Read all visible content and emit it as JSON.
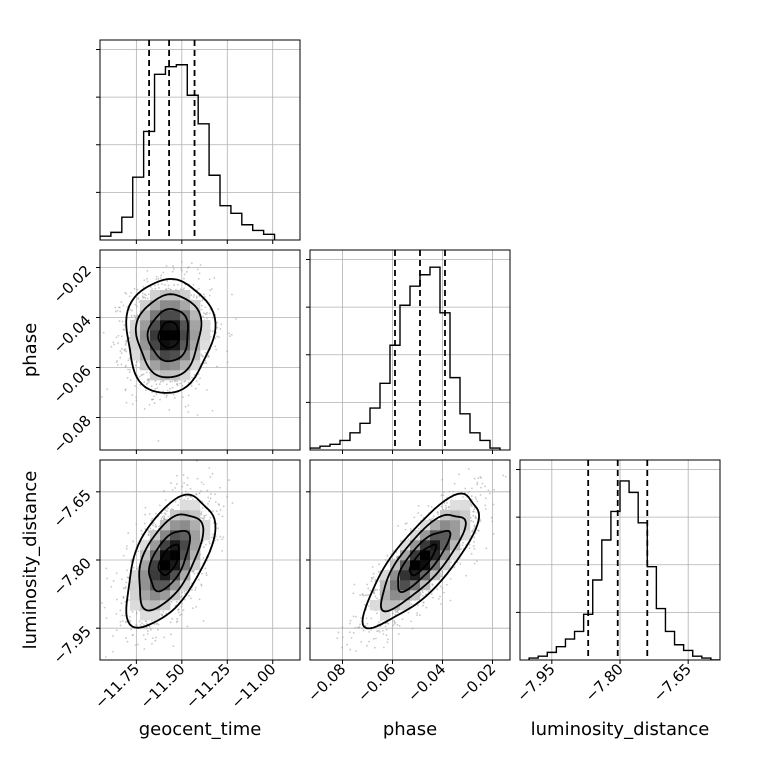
{
  "chart_data": {
    "type": "corner",
    "parameters": [
      "geocent_time",
      "phase",
      "luminosity_distance"
    ],
    "grid": true,
    "diagonal": [
      {
        "parameter": "geocent_time",
        "xlim": [
          -11.95,
          -10.85
        ],
        "ylim": [
          0,
          1.05
        ],
        "ticks": [
          -11.75,
          -11.5,
          -11.25,
          -11.0
        ],
        "tick_labels": [
          "−11.75",
          "−11.50",
          "−11.25",
          "−11.00"
        ],
        "hist_edges": [
          -11.95,
          -11.89,
          -11.83,
          -11.77,
          -11.71,
          -11.65,
          -11.59,
          -11.53,
          -11.47,
          -11.41,
          -11.35,
          -11.29,
          -11.23,
          -11.17,
          -11.11,
          -11.05,
          -10.99
        ],
        "hist_counts": [
          0.02,
          0.04,
          0.12,
          0.33,
          0.57,
          0.87,
          0.91,
          0.92,
          0.76,
          0.61,
          0.34,
          0.18,
          0.14,
          0.08,
          0.05,
          0.03
        ],
        "quantiles": [
          -11.68,
          -11.57,
          -11.43
        ]
      },
      {
        "parameter": "phase",
        "xlim": [
          -0.093,
          -0.013
        ],
        "ylim": [
          0,
          1.05
        ],
        "ticks": [
          -0.08,
          -0.06,
          -0.04,
          -0.02
        ],
        "tick_labels": [
          "−0.08",
          "−0.06",
          "−0.04",
          "−0.02"
        ],
        "hist_edges": [
          -0.093,
          -0.089,
          -0.085,
          -0.081,
          -0.077,
          -0.073,
          -0.069,
          -0.065,
          -0.061,
          -0.057,
          -0.053,
          -0.049,
          -0.045,
          -0.041,
          -0.037,
          -0.033,
          -0.029,
          -0.025,
          -0.021,
          -0.017
        ],
        "hist_counts": [
          0.01,
          0.02,
          0.03,
          0.05,
          0.09,
          0.14,
          0.22,
          0.35,
          0.55,
          0.76,
          0.86,
          0.92,
          0.96,
          0.72,
          0.38,
          0.19,
          0.09,
          0.05,
          0.01
        ],
        "quantiles": [
          -0.059,
          -0.049,
          -0.039
        ]
      },
      {
        "parameter": "luminosity_distance",
        "xlim": [
          -8.02,
          -7.58
        ],
        "ylim": [
          0,
          1.05
        ],
        "ticks": [
          -7.95,
          -7.8,
          -7.65
        ],
        "tick_labels": [
          "−7.95",
          "−7.80",
          "−7.65"
        ],
        "hist_edges": [
          -8.0,
          -7.98,
          -7.96,
          -7.94,
          -7.92,
          -7.9,
          -7.88,
          -7.86,
          -7.84,
          -7.82,
          -7.8,
          -7.78,
          -7.76,
          -7.74,
          -7.72,
          -7.7,
          -7.68,
          -7.66,
          -7.64,
          -7.62,
          -7.6,
          -7.58
        ],
        "hist_counts": [
          0.01,
          0.02,
          0.04,
          0.07,
          0.11,
          0.15,
          0.24,
          0.42,
          0.63,
          0.78,
          0.94,
          0.88,
          0.72,
          0.49,
          0.27,
          0.15,
          0.08,
          0.05,
          0.02,
          0.01,
          0.0
        ],
        "quantiles": [
          -7.87,
          -7.805,
          -7.74
        ]
      }
    ],
    "pairs": [
      {
        "x": "geocent_time",
        "y": "phase",
        "xlim": [
          -11.95,
          -10.85
        ],
        "ylim": [
          -0.093,
          -0.013
        ],
        "yticks": [
          -0.08,
          -0.06,
          -0.04,
          -0.02
        ],
        "ytick_labels": [
          "−0.08",
          "−0.06",
          "−0.04",
          "−0.02"
        ],
        "center": [
          -11.57,
          -0.047
        ],
        "sigma": [
          0.1,
          0.0095
        ],
        "correlation": 0.05,
        "contour_scales": [
          0.55,
          1.1,
          1.75,
          2.4
        ]
      },
      {
        "x": "geocent_time",
        "y": "luminosity_distance",
        "xlim": [
          -11.95,
          -10.85
        ],
        "ylim": [
          -8.02,
          -7.58
        ],
        "yticks": [
          -7.95,
          -7.8,
          -7.65
        ],
        "ytick_labels": [
          "−7.95",
          "−7.80",
          "−7.65"
        ],
        "center": [
          -11.57,
          -7.8
        ],
        "sigma": [
          0.1,
          0.06
        ],
        "correlation": 0.55,
        "contour_scales": [
          0.55,
          1.1,
          1.75,
          2.4
        ]
      },
      {
        "x": "phase",
        "y": "luminosity_distance",
        "xlim": [
          -0.093,
          -0.013
        ],
        "ylim": [
          -8.02,
          -7.58
        ],
        "center": [
          -0.048,
          -7.8
        ],
        "sigma": [
          0.0095,
          0.06
        ],
        "correlation": 0.8,
        "contour_scales": [
          0.55,
          1.1,
          1.75,
          2.4
        ]
      }
    ],
    "colors": {
      "line": "#000000",
      "points": "#9a9a9a",
      "grid": "#b0b0b0"
    }
  }
}
